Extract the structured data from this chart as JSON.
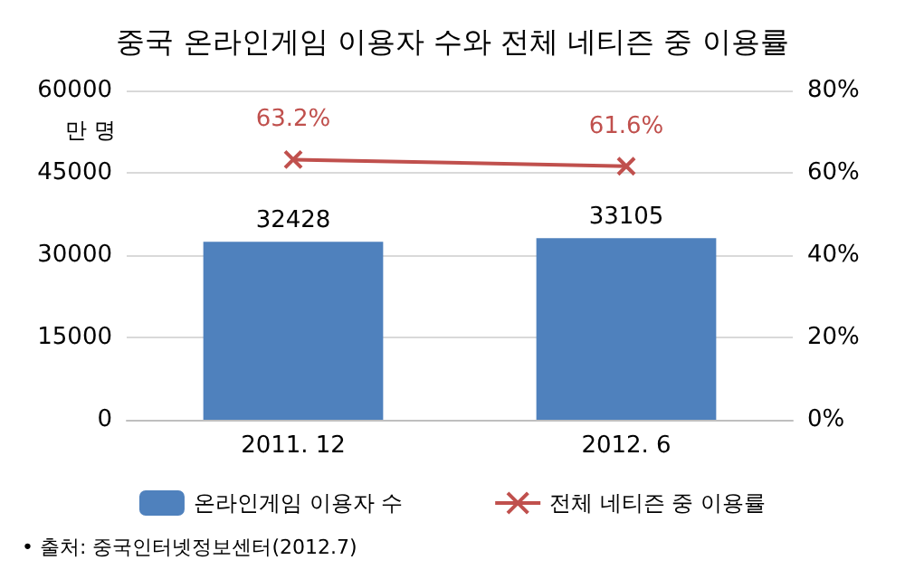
{
  "chart_data": {
    "type": "bar",
    "title": "중국 온라인게임 이용자 수와 전체 네티즌 중 이용률",
    "ylabel": "만 명",
    "categories": [
      "2011. 12",
      "2012. 6"
    ],
    "series": [
      {
        "name": "온라인게임 이용자 수",
        "color": "#4f81bd",
        "values": [
          32428,
          33105
        ],
        "value_labels": [
          "32428",
          "33105"
        ]
      },
      {
        "name": "전체 네티즌 중 이용률",
        "type": "line",
        "axis": "y2",
        "color": "#c0504d",
        "values": [
          63.2,
          61.6
        ],
        "value_labels": [
          "63.2%",
          "61.6%"
        ]
      }
    ],
    "ylim": [
      0,
      60000
    ],
    "yticks": [
      0,
      15000,
      30000,
      45000,
      60000
    ],
    "y2lim": [
      0,
      80
    ],
    "y2ticks": [
      {
        "value": 0,
        "label": "0%"
      },
      {
        "value": 20,
        "label": "20%"
      },
      {
        "value": 40,
        "label": "40%"
      },
      {
        "value": 60,
        "label": "60%"
      },
      {
        "value": 80,
        "label": "80%"
      }
    ],
    "grid": "y",
    "legend": "bottom",
    "marker": "cross",
    "line_style": "solid",
    "annotations": [
      "• 출처: 중국인터넷정보센터(2012.7)"
    ]
  }
}
